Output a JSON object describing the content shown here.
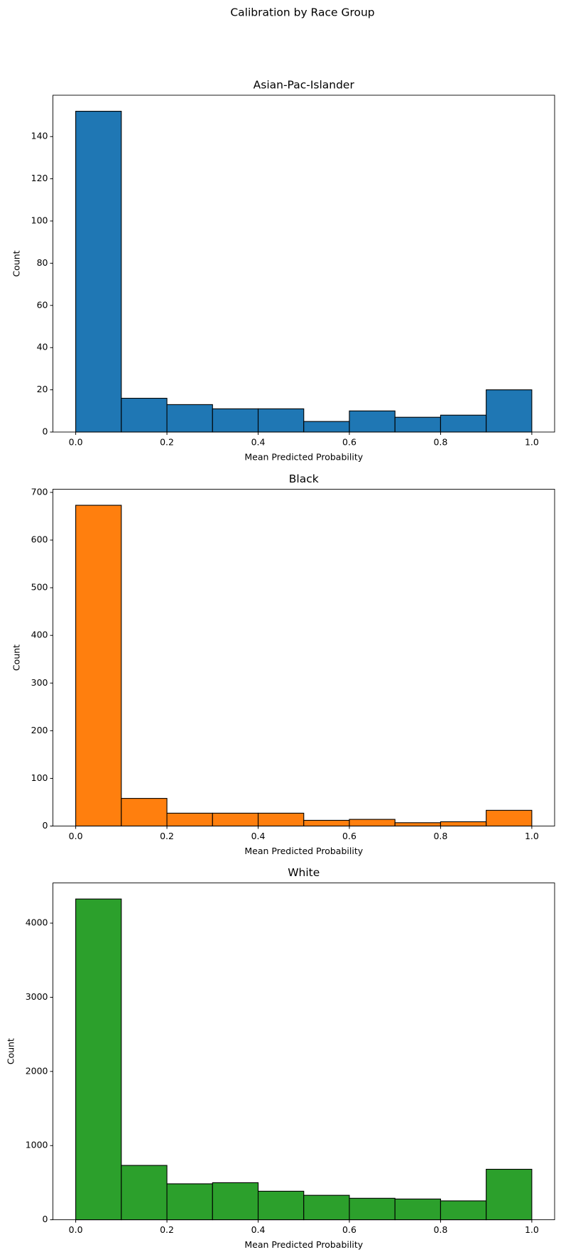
{
  "title": "Calibration by Race Group",
  "chart_data": [
    {
      "type": "histogram",
      "title": "Asian-Pac-Islander",
      "x_label": "Mean Predicted Probability",
      "y_label": "Count",
      "color": "#1f77b4",
      "bins": [
        0,
        0.1,
        0.2,
        0.3,
        0.4,
        0.5,
        0.6,
        0.7,
        0.8,
        0.9,
        1.0
      ],
      "values": [
        152,
        16,
        13,
        11,
        11,
        5,
        10,
        7,
        8,
        20
      ],
      "xlim": [
        -0.05,
        1.05
      ],
      "xticks": [
        {
          "value": 0,
          "label": "0.0"
        },
        0.2,
        0.4,
        0.6,
        0.8,
        {
          "value": 1,
          "label": "1.0"
        }
      ],
      "ylim": [
        0,
        159.6
      ],
      "yticks": [
        0,
        20,
        40,
        60,
        80,
        100,
        120,
        140
      ]
    },
    {
      "type": "histogram",
      "title": "Black",
      "x_label": "Mean Predicted Probability",
      "y_label": "Count",
      "color": "#ff7f0e",
      "bins": [
        0,
        0.1,
        0.2,
        0.3,
        0.4,
        0.5,
        0.6,
        0.7,
        0.8,
        0.9,
        1.0
      ],
      "values": [
        673,
        58,
        27,
        27,
        27,
        12,
        14,
        7,
        9,
        33
      ],
      "xlim": [
        -0.05,
        1.05
      ],
      "xticks": [
        {
          "value": 0,
          "label": "0.0"
        },
        0.2,
        0.4,
        0.6,
        0.8,
        {
          "value": 1,
          "label": "1.0"
        }
      ],
      "ylim": [
        0,
        706.65
      ],
      "yticks": [
        0,
        100,
        200,
        300,
        400,
        500,
        600,
        700
      ]
    },
    {
      "type": "histogram",
      "title": "White",
      "x_label": "Mean Predicted Probability",
      "y_label": "Count",
      "color": "#2ca02c",
      "bins": [
        0,
        0.1,
        0.2,
        0.3,
        0.4,
        0.5,
        0.6,
        0.7,
        0.8,
        0.9,
        1.0
      ],
      "values": [
        4325,
        733,
        485,
        500,
        385,
        330,
        290,
        280,
        255,
        681
      ],
      "xlim": [
        -0.05,
        1.05
      ],
      "xticks": [
        {
          "value": 0,
          "label": "0.0"
        },
        0.2,
        0.4,
        0.6,
        0.8,
        {
          "value": 1,
          "label": "1.0"
        }
      ],
      "ylim": [
        0,
        4541.25
      ],
      "yticks": [
        0,
        1000,
        2000,
        3000,
        4000
      ]
    }
  ]
}
